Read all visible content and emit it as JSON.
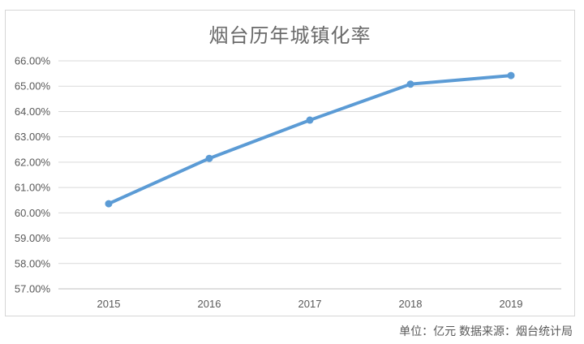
{
  "colors": {
    "line": "#5b9bd5",
    "grid": "#d9d9d9",
    "axis": "#bfbfbf",
    "text": "#595959",
    "title": "#6a6a6a",
    "border": "#d6d6d6"
  },
  "chart_data": {
    "type": "line",
    "title": "烟台历年城镇化率",
    "categories": [
      "2015",
      "2016",
      "2017",
      "2018",
      "2019"
    ],
    "values": [
      60.36,
      62.15,
      63.66,
      65.08,
      65.42
    ],
    "ylim": [
      57,
      66
    ],
    "y_step": 1,
    "y_tick_labels": [
      "66.00%",
      "65.00%",
      "64.00%",
      "63.00%",
      "62.00%",
      "61.00%",
      "60.00%",
      "59.00%",
      "58.00%",
      "57.00%"
    ],
    "xlabel": "",
    "ylabel": "",
    "grid": true,
    "legend": false,
    "marker": "circle",
    "source_note": "单位：亿元 数据来源：烟台统计局"
  }
}
